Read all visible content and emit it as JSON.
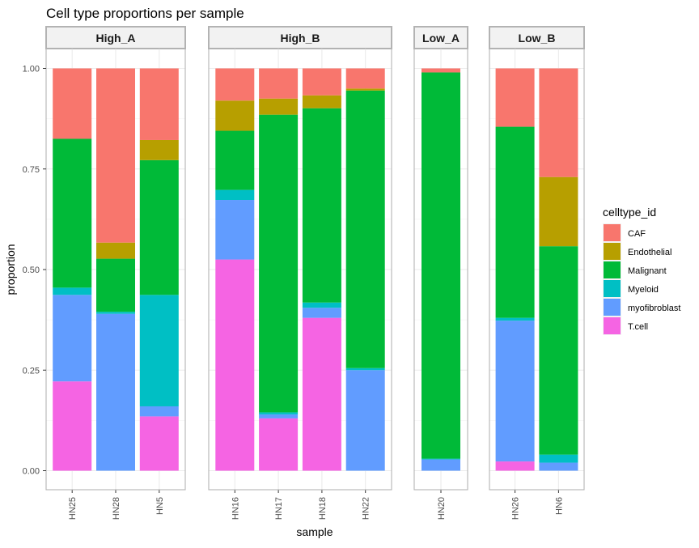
{
  "chart_data": {
    "type": "bar",
    "stacked": true,
    "faceted": true,
    "title": "Cell type proportions per sample",
    "xlabel": "sample",
    "ylabel": "proportion",
    "ylim": [
      0,
      1
    ],
    "yticks": [
      "0.00",
      "0.25",
      "0.50",
      "0.75",
      "1.00"
    ],
    "ytick_values": [
      0,
      0.25,
      0.5,
      0.75,
      1.0
    ],
    "grid": true,
    "legend": {
      "title": "celltype_id",
      "position": "right",
      "entries": [
        "CAF",
        "Endothelial",
        "Malignant",
        "Myeloid",
        "myofibroblast",
        "T.cell"
      ]
    },
    "stack_order_bottom_to_top": [
      "T.cell",
      "myofibroblast",
      "Myeloid",
      "Malignant",
      "Endothelial",
      "CAF"
    ],
    "colors": {
      "CAF": "#F8766D",
      "Endothelial": "#B79F00",
      "Malignant": "#00BA38",
      "Myeloid": "#00BFC4",
      "myofibroblast": "#619CFF",
      "T.cell": "#F564E3"
    },
    "facets": [
      {
        "name": "High_A",
        "samples": [
          {
            "sample": "HN25",
            "values": {
              "T.cell": 0.222,
              "myofibroblast": 0.215,
              "Myeloid": 0.018,
              "Malignant": 0.37,
              "Endothelial": 0.0,
              "CAF": 0.175
            }
          },
          {
            "sample": "HN28",
            "values": {
              "T.cell": 0.0,
              "myofibroblast": 0.39,
              "Myeloid": 0.005,
              "Malignant": 0.132,
              "Endothelial": 0.04,
              "CAF": 0.433
            }
          },
          {
            "sample": "HN5",
            "values": {
              "T.cell": 0.135,
              "myofibroblast": 0.025,
              "Myeloid": 0.277,
              "Malignant": 0.335,
              "Endothelial": 0.05,
              "CAF": 0.178
            }
          }
        ]
      },
      {
        "name": "High_B",
        "samples": [
          {
            "sample": "HN16",
            "values": {
              "T.cell": 0.525,
              "myofibroblast": 0.148,
              "Myeloid": 0.025,
              "Malignant": 0.147,
              "Endothelial": 0.075,
              "CAF": 0.08
            }
          },
          {
            "sample": "HN17",
            "values": {
              "T.cell": 0.13,
              "myofibroblast": 0.01,
              "Myeloid": 0.005,
              "Malignant": 0.74,
              "Endothelial": 0.04,
              "CAF": 0.075
            }
          },
          {
            "sample": "HN18",
            "values": {
              "T.cell": 0.38,
              "myofibroblast": 0.025,
              "Myeloid": 0.013,
              "Malignant": 0.483,
              "Endothelial": 0.032,
              "CAF": 0.067
            }
          },
          {
            "sample": "HN22",
            "values": {
              "T.cell": 0.0,
              "myofibroblast": 0.25,
              "Myeloid": 0.005,
              "Malignant": 0.69,
              "Endothelial": 0.005,
              "CAF": 0.05
            }
          }
        ]
      },
      {
        "name": "Low_A",
        "samples": [
          {
            "sample": "HN20",
            "values": {
              "T.cell": 0.0,
              "myofibroblast": 0.028,
              "Myeloid": 0.002,
              "Malignant": 0.96,
              "Endothelial": 0.0,
              "CAF": 0.01
            }
          }
        ]
      },
      {
        "name": "Low_B",
        "samples": [
          {
            "sample": "HN26",
            "values": {
              "T.cell": 0.023,
              "myofibroblast": 0.35,
              "Myeloid": 0.007,
              "Malignant": 0.475,
              "Endothelial": 0.0,
              "CAF": 0.145
            }
          },
          {
            "sample": "HN6",
            "values": {
              "T.cell": 0.0,
              "myofibroblast": 0.02,
              "Myeloid": 0.02,
              "Malignant": 0.518,
              "Endothelial": 0.172,
              "CAF": 0.27
            }
          }
        ]
      }
    ]
  }
}
